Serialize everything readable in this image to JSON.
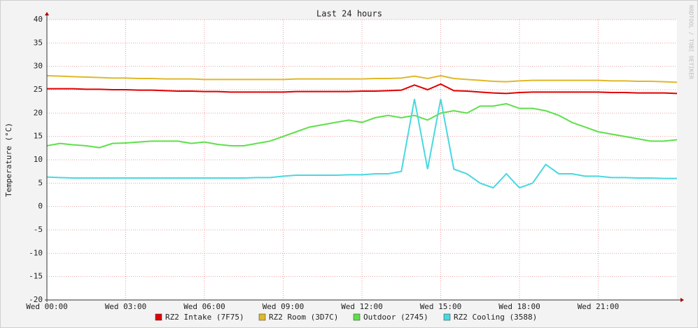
{
  "chart_data": {
    "type": "line",
    "title": "Last 24 hours",
    "y_label": "Temperature (°C)",
    "watermark": "RRDTOOL / TOBI OETIKER",
    "x": [
      0,
      0.5,
      1,
      1.5,
      2,
      2.5,
      3,
      3.5,
      4,
      4.5,
      5,
      5.5,
      6,
      6.5,
      7,
      7.5,
      8,
      8.5,
      9,
      9.5,
      10,
      10.5,
      11,
      11.5,
      12,
      12.5,
      13,
      13.5,
      14,
      14.5,
      15,
      15.5,
      16,
      16.5,
      17,
      17.5,
      18,
      18.5,
      19,
      19.5,
      20,
      20.5,
      21,
      21.5,
      22,
      22.5,
      23,
      23.5,
      24
    ],
    "xlim": [
      0,
      24
    ],
    "xticks": [
      {
        "value": 0,
        "label": "Wed 00:00"
      },
      {
        "value": 3,
        "label": "Wed 03:00"
      },
      {
        "value": 6,
        "label": "Wed 06:00"
      },
      {
        "value": 9,
        "label": "Wed 09:00"
      },
      {
        "value": 12,
        "label": "Wed 12:00"
      },
      {
        "value": 15,
        "label": "Wed 15:00"
      },
      {
        "value": 18,
        "label": "Wed 18:00"
      },
      {
        "value": 21,
        "label": "Wed 21:00"
      }
    ],
    "ylim": [
      -20,
      40
    ],
    "yticks": [
      -20,
      -15,
      -10,
      -5,
      0,
      5,
      10,
      15,
      20,
      25,
      30,
      35,
      40
    ],
    "grid": true,
    "series": [
      {
        "name": "RZ2 Intake (7F75)",
        "color": "#e00000",
        "values": [
          25.2,
          25.2,
          25.2,
          25.1,
          25.1,
          25.0,
          25.0,
          24.9,
          24.9,
          24.8,
          24.7,
          24.7,
          24.6,
          24.6,
          24.5,
          24.5,
          24.5,
          24.5,
          24.5,
          24.6,
          24.6,
          24.6,
          24.6,
          24.6,
          24.7,
          24.7,
          24.8,
          24.9,
          26.0,
          25.0,
          26.2,
          24.8,
          24.7,
          24.5,
          24.3,
          24.2,
          24.4,
          24.5,
          24.5,
          24.5,
          24.5,
          24.5,
          24.5,
          24.4,
          24.4,
          24.3,
          24.3,
          24.3,
          24.2
        ]
      },
      {
        "name": "RZ2 Room (3D7C)",
        "color": "#e0b828",
        "values": [
          28.0,
          27.9,
          27.8,
          27.7,
          27.6,
          27.5,
          27.5,
          27.4,
          27.4,
          27.3,
          27.3,
          27.3,
          27.2,
          27.2,
          27.2,
          27.2,
          27.2,
          27.2,
          27.2,
          27.3,
          27.3,
          27.3,
          27.3,
          27.3,
          27.3,
          27.4,
          27.4,
          27.5,
          27.9,
          27.4,
          28.0,
          27.4,
          27.2,
          27.0,
          26.8,
          26.7,
          26.9,
          27.0,
          27.0,
          27.0,
          27.0,
          27.0,
          27.0,
          26.9,
          26.9,
          26.8,
          26.8,
          26.7,
          26.6
        ]
      },
      {
        "name": "Outdoor (2745)",
        "color": "#5ee04a",
        "values": [
          13.0,
          13.5,
          13.2,
          13.0,
          12.6,
          13.5,
          13.6,
          13.8,
          14.0,
          14.0,
          14.0,
          13.5,
          13.8,
          13.3,
          13.0,
          13.0,
          13.5,
          14.0,
          15.0,
          16.0,
          17.0,
          17.5,
          18.0,
          18.5,
          18.0,
          19.0,
          19.5,
          19.0,
          19.5,
          18.5,
          20.0,
          20.5,
          20.0,
          21.5,
          21.5,
          22.0,
          21.0,
          21.0,
          20.5,
          19.5,
          18.0,
          17.0,
          16.0,
          15.5,
          15.0,
          14.5,
          14.0,
          14.0,
          14.3
        ]
      },
      {
        "name": "RZ2 Cooling (3588)",
        "color": "#48d8e0",
        "values": [
          6.3,
          6.2,
          6.1,
          6.1,
          6.1,
          6.1,
          6.1,
          6.1,
          6.1,
          6.1,
          6.1,
          6.1,
          6.1,
          6.1,
          6.1,
          6.1,
          6.2,
          6.2,
          6.5,
          6.7,
          6.7,
          6.7,
          6.7,
          6.8,
          6.8,
          7.0,
          7.0,
          7.5,
          23.0,
          8.0,
          23.0,
          8.0,
          7.0,
          5.0,
          4.0,
          7.0,
          4.0,
          5.0,
          9.0,
          7.0,
          7.0,
          6.5,
          6.5,
          6.2,
          6.2,
          6.1,
          6.1,
          6.0,
          6.0
        ]
      }
    ]
  }
}
